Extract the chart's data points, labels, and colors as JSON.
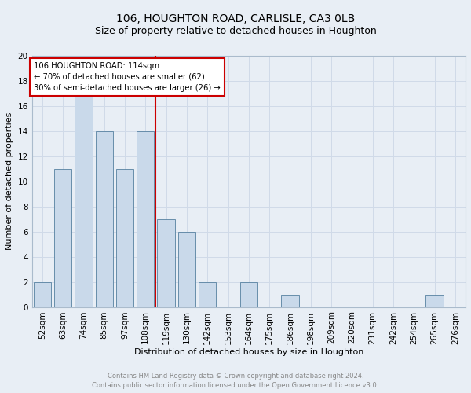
{
  "title": "106, HOUGHTON ROAD, CARLISLE, CA3 0LB",
  "subtitle": "Size of property relative to detached houses in Houghton",
  "xlabel": "Distribution of detached houses by size in Houghton",
  "ylabel": "Number of detached properties",
  "footer_line1": "Contains HM Land Registry data © Crown copyright and database right 2024.",
  "footer_line2": "Contains public sector information licensed under the Open Government Licence v3.0.",
  "bins": [
    "52sqm",
    "63sqm",
    "74sqm",
    "85sqm",
    "97sqm",
    "108sqm",
    "119sqm",
    "130sqm",
    "142sqm",
    "153sqm",
    "164sqm",
    "175sqm",
    "186sqm",
    "198sqm",
    "209sqm",
    "220sqm",
    "231sqm",
    "242sqm",
    "254sqm",
    "265sqm",
    "276sqm"
  ],
  "counts": [
    2,
    11,
    17,
    14,
    11,
    14,
    7,
    6,
    2,
    0,
    2,
    0,
    1,
    0,
    0,
    0,
    0,
    0,
    0,
    1,
    0
  ],
  "property_bin_index": 5,
  "annotation_title": "106 HOUGHTON ROAD: 114sqm",
  "annotation_line1": "← 70% of detached houses are smaller (62)",
  "annotation_line2": "30% of semi-detached houses are larger (26) →",
  "bar_color": "#c9d9ea",
  "bar_edge_color": "#5580a0",
  "vline_color": "#cc0000",
  "annotation_box_edge": "#cc0000",
  "annotation_bg": "#ffffff",
  "grid_color": "#d0dae8",
  "background_color": "#e8eef5",
  "ylim": [
    0,
    20
  ],
  "yticks": [
    0,
    2,
    4,
    6,
    8,
    10,
    12,
    14,
    16,
    18,
    20
  ],
  "title_fontsize": 10,
  "subtitle_fontsize": 9,
  "xlabel_fontsize": 8,
  "ylabel_fontsize": 8,
  "tick_fontsize": 7.5,
  "footer_fontsize": 6,
  "footer_color": "#888888"
}
